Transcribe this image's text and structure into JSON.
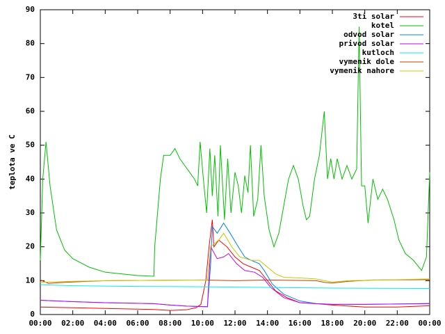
{
  "chart_data": {
    "type": "line",
    "ylabel": "teplota ve C",
    "xlim": [
      0,
      24
    ],
    "xticks": [
      {
        "value": 0,
        "label": "00:00"
      },
      {
        "value": 2,
        "label": "02:00"
      },
      {
        "value": 4,
        "label": "04:00"
      },
      {
        "value": 6,
        "label": "06:00"
      },
      {
        "value": 8,
        "label": "08:00"
      },
      {
        "value": 10,
        "label": "10:00"
      },
      {
        "value": 12,
        "label": "12:00"
      },
      {
        "value": 14,
        "label": "14:00"
      },
      {
        "value": 16,
        "label": "16:00"
      },
      {
        "value": 18,
        "label": "18:00"
      },
      {
        "value": 20,
        "label": "20:00"
      },
      {
        "value": 22,
        "label": "22:00"
      },
      {
        "value": 24,
        "label": "00:00"
      }
    ],
    "ylim": [
      0,
      90
    ],
    "yticks": [
      0,
      10,
      20,
      30,
      40,
      50,
      60,
      70,
      80,
      90
    ],
    "legend": "top-right",
    "series": [
      {
        "name": "3ti solar",
        "color": "#ff0000",
        "x": [
          0,
          4,
          7,
          8,
          9,
          9.6,
          9.9,
          10.2,
          10.4,
          10.6,
          10.7,
          11.0,
          11.5,
          12,
          12.5,
          13,
          13.5,
          14,
          14.5,
          15.2,
          16,
          17,
          18,
          19,
          20,
          22,
          24
        ],
        "values": [
          2.2,
          1.8,
          1.5,
          1.2,
          1.4,
          2,
          3,
          10,
          20,
          28,
          20,
          22,
          20,
          17,
          15,
          14,
          13,
          10,
          7,
          5,
          3.5,
          3.2,
          2.8,
          2.5,
          2.2,
          2.2,
          2.6
        ]
      },
      {
        "name": "kotel",
        "color": "#00c000",
        "x": [
          0,
          0.15,
          0.35,
          0.6,
          1,
          1.5,
          2,
          3,
          4,
          5,
          6,
          7,
          7.05,
          7.4,
          7.6,
          8,
          8.3,
          8.6,
          8.9,
          9.2,
          9.5,
          9.7,
          9.85,
          10.05,
          10.25,
          10.45,
          10.6,
          10.75,
          10.95,
          11.1,
          11.35,
          11.55,
          11.75,
          12.0,
          12.2,
          12.4,
          12.6,
          12.8,
          12.95,
          13.15,
          13.4,
          13.6,
          13.8,
          14.1,
          14.4,
          14.7,
          15.0,
          15.3,
          15.6,
          15.9,
          16.2,
          16.4,
          16.6,
          16.9,
          17.2,
          17.5,
          17.7,
          17.9,
          18.1,
          18.3,
          18.6,
          18.9,
          19.2,
          19.5,
          19.65,
          19.8,
          20.0,
          20.2,
          20.5,
          20.8,
          21.1,
          21.4,
          21.8,
          22.1,
          22.5,
          23.0,
          23.5,
          23.8,
          24
        ],
        "values": [
          16,
          40,
          51,
          38,
          25,
          19,
          16.5,
          14,
          12.5,
          12,
          11.5,
          11.3,
          20,
          40,
          47,
          47,
          49,
          46,
          44,
          42,
          40,
          38,
          51,
          40,
          30,
          49,
          35,
          47,
          29,
          50,
          28,
          46,
          30,
          42,
          38,
          30,
          41,
          36,
          50,
          29,
          34,
          50,
          35,
          25,
          20,
          24,
          32,
          40,
          44,
          40,
          32,
          28,
          29,
          40,
          47,
          60,
          40,
          46,
          40,
          46,
          40,
          44,
          40,
          43,
          85,
          38,
          38,
          27,
          40,
          34,
          37,
          34,
          28,
          22,
          18,
          16,
          13,
          17,
          42
        ]
      },
      {
        "name": "odvod solar",
        "color": "#0080ff",
        "x": [
          0,
          2,
          4,
          7,
          8,
          9,
          10.3,
          10.5,
          10.6,
          10.9,
          11.3,
          11.7,
          12.2,
          12.6,
          13,
          13.5,
          13.8,
          14.3,
          15,
          16,
          17,
          18,
          20,
          22,
          24
        ],
        "values": [
          4.2,
          3.8,
          3.5,
          3.2,
          2.8,
          2.5,
          2.3,
          15,
          26,
          24,
          27,
          24,
          20,
          17,
          16,
          15,
          13,
          9,
          6,
          4,
          3.2,
          3,
          3,
          3.1,
          3.3
        ]
      },
      {
        "name": "privod solar",
        "color": "#c000ff",
        "x": [
          0,
          2,
          4,
          7,
          8,
          9,
          10.3,
          10.5,
          10.9,
          11.3,
          11.6,
          12.1,
          12.6,
          13.2,
          13.7,
          14.2,
          15,
          16,
          17,
          18,
          20,
          24
        ],
        "values": [
          4.2,
          3.8,
          3.5,
          3.2,
          2.8,
          2.5,
          2.3,
          20,
          16.5,
          17,
          18,
          15,
          13,
          12.5,
          11,
          8,
          5,
          3.5,
          3.2,
          3,
          3,
          3.2
        ]
      },
      {
        "name": "kutloch",
        "color": "#00eeee",
        "x": [
          0,
          2,
          6,
          10,
          14,
          18,
          24
        ],
        "values": [
          8.8,
          8.5,
          8.3,
          8.2,
          8,
          7.8,
          7.7
        ]
      },
      {
        "name": "vymenik dole",
        "color": "#c04000",
        "x": [
          0,
          0.5,
          1.5,
          4,
          10,
          12,
          14,
          17,
          17.5,
          18,
          19,
          20.5,
          24
        ],
        "values": [
          10.2,
          9.2,
          9.5,
          10,
          10.2,
          10,
          10.2,
          10,
          9.5,
          9.3,
          9.8,
          10.2,
          10.3
        ]
      },
      {
        "name": "vymenik nahore",
        "color": "#c8c800",
        "x": [
          0,
          2,
          4,
          10.3,
          10.5,
          11,
          11.3,
          11.8,
          12.3,
          13,
          13.5,
          14,
          14.5,
          15,
          16,
          17,
          17.5,
          18,
          19,
          21,
          24
        ],
        "values": [
          9.5,
          9.8,
          10,
          10.2,
          20,
          22,
          24,
          20,
          17,
          16,
          16,
          14,
          12,
          11,
          10.8,
          10.5,
          10,
          9.6,
          10,
          10.2,
          10.5
        ]
      }
    ]
  }
}
